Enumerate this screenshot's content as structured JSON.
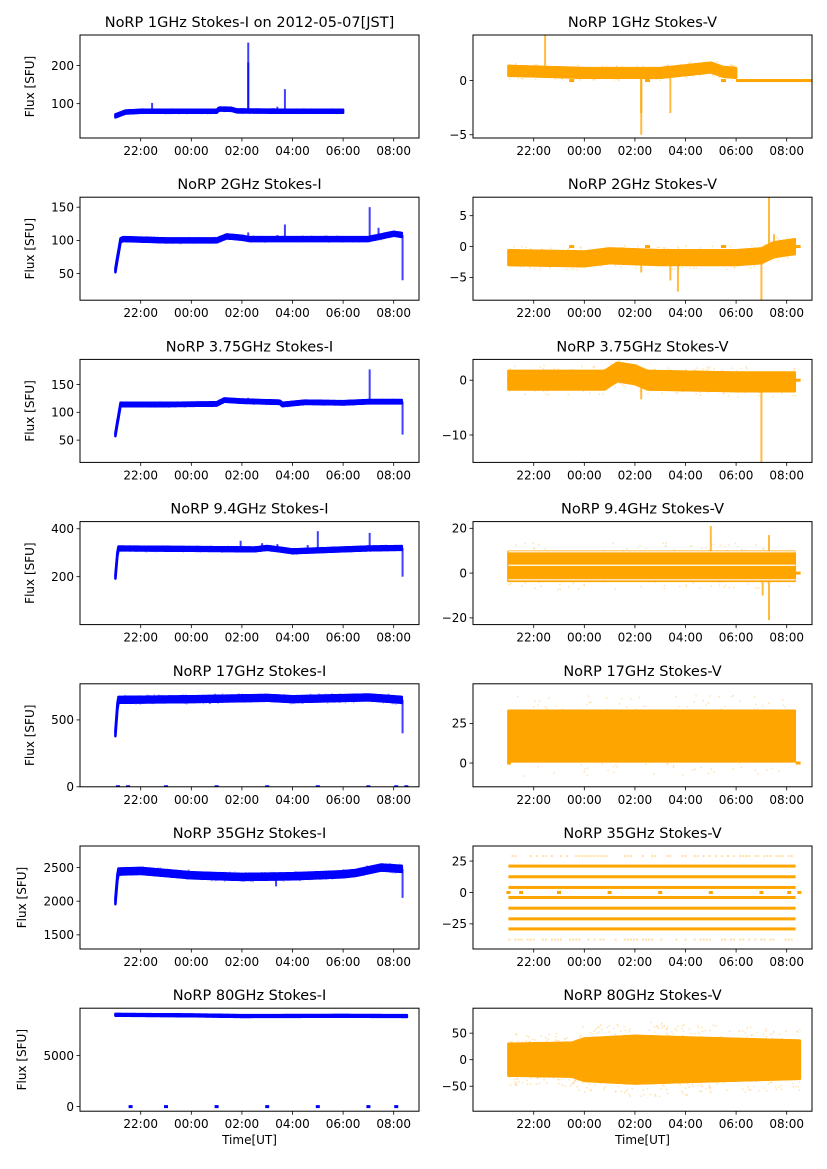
{
  "figure": {
    "x_tick_labels": [
      "22:00",
      "00:00",
      "02:00",
      "04:00",
      "06:00",
      "08:00"
    ],
    "xlabel": "Time[UT]",
    "ylabel": "Flux [SFU]",
    "colors": {
      "stokes_i": "#0000ff",
      "stokes_v": "#ffa500"
    }
  },
  "chart_data": [
    {
      "type": "scatter",
      "panel": "1GHz-I",
      "title": "NoRP 1GHz Stokes-I on 2012-05-07[JST]",
      "xlabel": "",
      "ylabel": "Flux [SFU]",
      "xlim_hours": [
        19.6,
        33.0
      ],
      "ylim": [
        10,
        280
      ],
      "yticks": [
        100,
        200
      ],
      "xticks": [
        "22:00",
        "00:00",
        "02:00",
        "04:00",
        "06:00",
        "08:00"
      ],
      "color": "#0000ff",
      "data_span_hours": [
        21.0,
        30.0
      ],
      "baseline": [
        [
          21.0,
          68
        ],
        [
          21.4,
          78
        ],
        [
          22.0,
          80
        ],
        [
          24.0,
          80
        ],
        [
          25.0,
          80
        ],
        [
          25.1,
          86
        ],
        [
          25.6,
          85
        ],
        [
          25.8,
          81
        ],
        [
          28.0,
          80
        ],
        [
          30.0,
          80
        ]
      ],
      "band": 4,
      "spikes": [
        [
          22.45,
          102
        ],
        [
          26.25,
          260
        ],
        [
          26.25,
          208
        ],
        [
          27.2,
          88
        ],
        [
          27.4,
          92
        ],
        [
          27.7,
          138
        ]
      ],
      "fill_gaps": []
    },
    {
      "type": "scatter",
      "panel": "1GHz-V",
      "title": "NoRP 1GHz Stokes-V",
      "xlabel": "",
      "ylabel": "",
      "xlim_hours": [
        19.6,
        33.0
      ],
      "ylim": [
        -5.3,
        4.2
      ],
      "yticks": [
        -5,
        0
      ],
      "xticks": [
        "22:00",
        "00:00",
        "02:00",
        "04:00",
        "06:00",
        "08:00"
      ],
      "color": "#ffa500",
      "data_span_hours": [
        21.0,
        30.0
      ],
      "baseline": [
        [
          21.0,
          0.9
        ],
        [
          24.0,
          0.7
        ],
        [
          27.0,
          0.7
        ],
        [
          29.0,
          1.2
        ],
        [
          29.5,
          0.8
        ],
        [
          30.0,
          0.7
        ]
      ],
      "band": 0.45,
      "spikes": [
        [
          22.45,
          4.2
        ],
        [
          26.25,
          -3.0
        ],
        [
          26.25,
          -5.0
        ],
        [
          27.4,
          -3.0
        ]
      ],
      "flat_segments": [
        [
          30.0,
          33.0,
          0.0
        ]
      ],
      "fill_gaps": [
        [
          23.5,
          0.0
        ],
        [
          26.5,
          0.0
        ],
        [
          29.5,
          0.0
        ]
      ]
    },
    {
      "type": "scatter",
      "panel": "2GHz-I",
      "title": "NoRP 2GHz Stokes-I",
      "xlabel": "",
      "ylabel": "Flux [SFU]",
      "xlim_hours": [
        19.6,
        33.0
      ],
      "ylim": [
        10,
        165
      ],
      "yticks": [
        50,
        100,
        150
      ],
      "xticks": [
        "22:00",
        "00:00",
        "02:00",
        "04:00",
        "06:00",
        "08:00"
      ],
      "color": "#0000ff",
      "data_span_hours": [
        21.0,
        32.35
      ],
      "baseline": [
        [
          21.0,
          55
        ],
        [
          21.2,
          100
        ],
        [
          21.3,
          102
        ],
        [
          23.0,
          100
        ],
        [
          25.0,
          100
        ],
        [
          25.4,
          106
        ],
        [
          26.0,
          104
        ],
        [
          26.3,
          102
        ],
        [
          30.0,
          102
        ],
        [
          31.0,
          102
        ],
        [
          31.5,
          106
        ],
        [
          32.0,
          110
        ],
        [
          32.35,
          108
        ]
      ],
      "band": 3,
      "spikes": [
        [
          26.25,
          112
        ],
        [
          27.4,
          108
        ],
        [
          27.7,
          124
        ],
        [
          31.05,
          150
        ],
        [
          31.4,
          119
        ],
        [
          32.35,
          40
        ]
      ],
      "fill_gaps": []
    },
    {
      "type": "scatter",
      "panel": "2GHz-V",
      "title": "NoRP 2GHz Stokes-V",
      "xlabel": "",
      "ylabel": "",
      "xlim_hours": [
        19.6,
        33.0
      ],
      "ylim": [
        -8.7,
        8.0
      ],
      "yticks": [
        -5,
        0,
        5
      ],
      "xticks": [
        "22:00",
        "00:00",
        "02:00",
        "04:00",
        "06:00",
        "08:00"
      ],
      "color": "#ffa500",
      "data_span_hours": [
        21.0,
        32.35
      ],
      "baseline": [
        [
          21.0,
          -1.8
        ],
        [
          24.0,
          -2.0
        ],
        [
          25.0,
          -1.5
        ],
        [
          27.0,
          -1.8
        ],
        [
          30.0,
          -1.8
        ],
        [
          31.0,
          -1.5
        ],
        [
          31.5,
          -0.5
        ],
        [
          32.35,
          0.0
        ]
      ],
      "band": 1.2,
      "spikes": [
        [
          26.25,
          -4.2
        ],
        [
          27.4,
          -5.5
        ],
        [
          27.7,
          -7.3
        ],
        [
          31.0,
          -8.7
        ],
        [
          31.3,
          8.0
        ],
        [
          31.5,
          2.0
        ]
      ],
      "flat_segments": [
        [
          32.35,
          32.55,
          0.0
        ]
      ],
      "fill_gaps": [
        [
          23.5,
          0.0
        ],
        [
          26.5,
          0.0
        ],
        [
          29.5,
          0.0
        ]
      ]
    },
    {
      "type": "scatter",
      "panel": "3.75GHz-I",
      "title": "NoRP 3.75GHz Stokes-I",
      "xlabel": "",
      "ylabel": "Flux [SFU]",
      "xlim_hours": [
        19.6,
        33.0
      ],
      "ylim": [
        10,
        195
      ],
      "yticks": [
        50,
        100,
        150
      ],
      "xticks": [
        "22:00",
        "00:00",
        "02:00",
        "04:00",
        "06:00",
        "08:00"
      ],
      "color": "#0000ff",
      "data_span_hours": [
        21.0,
        32.35
      ],
      "baseline": [
        [
          21.0,
          60
        ],
        [
          21.2,
          114
        ],
        [
          23.0,
          114
        ],
        [
          25.0,
          115
        ],
        [
          25.3,
          122
        ],
        [
          26.0,
          120
        ],
        [
          27.5,
          118
        ],
        [
          27.6,
          114
        ],
        [
          28.5,
          118
        ],
        [
          30.0,
          117
        ],
        [
          31.0,
          119
        ],
        [
          32.35,
          119
        ]
      ],
      "band": 3,
      "spikes": [
        [
          26.25,
          126
        ],
        [
          31.05,
          177
        ],
        [
          32.35,
          60
        ]
      ],
      "fill_gaps": []
    },
    {
      "type": "scatter",
      "panel": "3.75GHz-V",
      "title": "NoRP 3.75GHz Stokes-V",
      "xlabel": "",
      "ylabel": "",
      "xlim_hours": [
        19.6,
        33.0
      ],
      "ylim": [
        -15,
        3.8
      ],
      "yticks": [
        -10,
        0
      ],
      "xticks": [
        "22:00",
        "00:00",
        "02:00",
        "04:00",
        "06:00",
        "08:00"
      ],
      "color": "#ffa500",
      "data_span_hours": [
        21.0,
        32.35
      ],
      "baseline": [
        [
          21.0,
          0.0
        ],
        [
          24.8,
          0.0
        ],
        [
          25.3,
          1.5
        ],
        [
          26.0,
          1.0
        ],
        [
          26.5,
          0.0
        ],
        [
          30.0,
          -0.3
        ],
        [
          32.35,
          -0.3
        ]
      ],
      "band": 1.7,
      "spikes": [
        [
          26.25,
          -3.5
        ],
        [
          31.0,
          -15.0
        ]
      ],
      "flat_segments": [
        [
          32.35,
          32.55,
          0.0
        ],
        [
          20.95,
          21.0,
          0.0
        ]
      ],
      "fill_gaps": []
    },
    {
      "type": "scatter",
      "panel": "9.4GHz-I",
      "title": "NoRP 9.4GHz Stokes-I",
      "xlabel": "",
      "ylabel": "Flux [SFU]",
      "xlim_hours": [
        19.6,
        33.0
      ],
      "ylim": [
        0,
        430
      ],
      "yticks": [
        200,
        400
      ],
      "xticks": [
        "22:00",
        "00:00",
        "02:00",
        "04:00",
        "06:00",
        "08:00"
      ],
      "color": "#0000ff",
      "data_span_hours": [
        21.0,
        32.35
      ],
      "baseline": [
        [
          21.0,
          200
        ],
        [
          21.1,
          318
        ],
        [
          24.0,
          316
        ],
        [
          26.5,
          314
        ],
        [
          27.0,
          320
        ],
        [
          27.6,
          312
        ],
        [
          28.0,
          306
        ],
        [
          29.0,
          310
        ],
        [
          30.0,
          314
        ],
        [
          31.0,
          318
        ],
        [
          32.35,
          320
        ]
      ],
      "band": 8,
      "spikes": [
        [
          25.95,
          350
        ],
        [
          26.8,
          340
        ],
        [
          27.4,
          336
        ],
        [
          28.6,
          332
        ],
        [
          29.0,
          390
        ],
        [
          31.05,
          383
        ],
        [
          32.35,
          200
        ]
      ],
      "fill_gaps": []
    },
    {
      "type": "scatter",
      "panel": "9.4GHz-V",
      "title": "NoRP 9.4GHz Stokes-V",
      "xlabel": "",
      "ylabel": "",
      "xlim_hours": [
        19.6,
        33.0
      ],
      "ylim": [
        -23,
        23
      ],
      "yticks": [
        -20,
        0,
        20
      ],
      "xticks": [
        "22:00",
        "00:00",
        "02:00",
        "04:00",
        "06:00",
        "08:00"
      ],
      "color": "#ffa500",
      "data_span_hours": [
        21.0,
        32.35
      ],
      "baseline": [
        [
          21.0,
          3.0
        ],
        [
          32.35,
          3.0
        ]
      ],
      "band": 6.5,
      "white_lines": [
        9.5,
        3.5,
        -3.0
      ],
      "spikes": [
        [
          29.0,
          21
        ],
        [
          31.05,
          -10
        ],
        [
          31.3,
          -21
        ],
        [
          31.3,
          17
        ]
      ],
      "flat_segments": [
        [
          20.95,
          21.0,
          0.0
        ],
        [
          32.35,
          32.55,
          0.0
        ]
      ],
      "fill_gaps": []
    },
    {
      "type": "scatter",
      "panel": "17GHz-I",
      "title": "NoRP 17GHz Stokes-I",
      "xlabel": "",
      "ylabel": "Flux [SFU]",
      "xlim_hours": [
        19.6,
        33.0
      ],
      "ylim": [
        0,
        770
      ],
      "yticks": [
        0,
        500
      ],
      "xticks": [
        "22:00",
        "00:00",
        "02:00",
        "04:00",
        "06:00",
        "08:00"
      ],
      "color": "#0000ff",
      "data_span_hours": [
        21.0,
        32.35
      ],
      "baseline": [
        [
          21.0,
          400
        ],
        [
          21.1,
          650
        ],
        [
          24.0,
          655
        ],
        [
          27.0,
          665
        ],
        [
          28.0,
          655
        ],
        [
          31.0,
          668
        ],
        [
          32.35,
          650
        ]
      ],
      "band": 22,
      "spikes": [
        [
          32.35,
          400
        ]
      ],
      "zero_markers": [
        21.1,
        21.5,
        23.0,
        25.0,
        27.0,
        29.0,
        31.0,
        32.1,
        32.5
      ],
      "fill_gaps": []
    },
    {
      "type": "scatter",
      "panel": "17GHz-V",
      "title": "NoRP 17GHz Stokes-V",
      "xlabel": "",
      "ylabel": "",
      "xlim_hours": [
        19.6,
        33.0
      ],
      "ylim": [
        -15,
        50
      ],
      "yticks": [
        0,
        25
      ],
      "xticks": [
        "22:00",
        "00:00",
        "02:00",
        "04:00",
        "06:00",
        "08:00"
      ],
      "color": "#ffa500",
      "data_span_hours": [
        21.0,
        32.35
      ],
      "baseline": [
        [
          21.0,
          17
        ],
        [
          32.35,
          17
        ]
      ],
      "band": 16,
      "spikes": [],
      "flat_segments": [
        [
          20.95,
          21.1,
          0.0
        ],
        [
          32.35,
          32.55,
          0.0
        ]
      ],
      "fill_gaps": []
    },
    {
      "type": "scatter",
      "panel": "35GHz-I",
      "title": "NoRP 35GHz Stokes-I",
      "xlabel": "",
      "ylabel": "Flux [SFU]",
      "xlim_hours": [
        19.6,
        33.0
      ],
      "ylim": [
        1290,
        2820
      ],
      "yticks": [
        1500,
        2000,
        2500
      ],
      "xticks": [
        "22:00",
        "00:00",
        "02:00",
        "04:00",
        "06:00",
        "08:00"
      ],
      "color": "#0000ff",
      "data_span_hours": [
        21.0,
        32.35
      ],
      "baseline": [
        [
          21.0,
          2000
        ],
        [
          21.1,
          2440
        ],
        [
          22.0,
          2450
        ],
        [
          24.0,
          2385
        ],
        [
          26.0,
          2360
        ],
        [
          28.0,
          2370
        ],
        [
          30.0,
          2400
        ],
        [
          30.5,
          2420
        ],
        [
          31.0,
          2460
        ],
        [
          31.5,
          2500
        ],
        [
          32.35,
          2480
        ]
      ],
      "band": 45,
      "spikes": [
        [
          27.35,
          2220
        ],
        [
          32.35,
          2050
        ]
      ],
      "fill_gaps": []
    },
    {
      "type": "scatter",
      "panel": "35GHz-V",
      "title": "NoRP 35GHz Stokes-V",
      "xlabel": "",
      "ylabel": "",
      "xlim_hours": [
        19.6,
        33.0
      ],
      "ylim": [
        -45,
        37
      ],
      "yticks": [
        -25,
        0,
        25
      ],
      "xticks": [
        "22:00",
        "00:00",
        "02:00",
        "04:00",
        "06:00",
        "08:00"
      ],
      "color": "#ffa500",
      "data_span_hours": [
        21.0,
        32.35
      ],
      "quantized_levels": [
        29,
        21,
        12.5,
        4,
        -4,
        -12.5,
        -21,
        -29,
        -37.5
      ],
      "sparse_levels": [
        29,
        -37.5
      ],
      "zero_markers": [
        21.0,
        21.5,
        23.0,
        25.0,
        27.0,
        29.0,
        31.0,
        32.1,
        32.5
      ],
      "spikes": [],
      "fill_gaps": []
    },
    {
      "type": "scatter",
      "panel": "80GHz-I",
      "title": "NoRP 80GHz Stokes-I",
      "xlabel": "Time[UT]",
      "ylabel": "Flux [SFU]",
      "xlim_hours": [
        19.6,
        33.0
      ],
      "ylim": [
        -450,
        9650
      ],
      "yticks": [
        0,
        5000
      ],
      "xticks": [
        "22:00",
        "00:00",
        "02:00",
        "04:00",
        "06:00",
        "08:00"
      ],
      "color": "#0000ff",
      "data_span_hours": [
        21.0,
        32.55
      ],
      "baseline": [
        [
          21.0,
          9000
        ],
        [
          24.0,
          8950
        ],
        [
          26.0,
          8880
        ],
        [
          30.0,
          8900
        ],
        [
          32.55,
          8880
        ]
      ],
      "band": 90,
      "spikes": [],
      "zero_markers": [
        21.6,
        23.0,
        25.0,
        27.0,
        29.0,
        31.0,
        32.1
      ],
      "fill_gaps": []
    },
    {
      "type": "scatter",
      "panel": "80GHz-V",
      "title": "NoRP 80GHz Stokes-V",
      "xlabel": "Time[UT]",
      "ylabel": "",
      "xlim_hours": [
        19.6,
        33.0
      ],
      "ylim": [
        -97,
        97
      ],
      "yticks": [
        -50,
        0,
        50
      ],
      "xticks": [
        "22:00",
        "00:00",
        "02:00",
        "04:00",
        "06:00",
        "08:00"
      ],
      "color": "#ffa500",
      "data_span_hours": [
        21.0,
        32.55
      ],
      "baseline": [
        [
          21.0,
          0
        ],
        [
          32.55,
          0
        ]
      ],
      "band_profile": [
        [
          21.0,
          30
        ],
        [
          23.5,
          32
        ],
        [
          24.0,
          40
        ],
        [
          26.0,
          45
        ],
        [
          28.0,
          42
        ],
        [
          32.55,
          36
        ]
      ],
      "band": 32,
      "spikes": [],
      "fill_gaps": []
    }
  ]
}
